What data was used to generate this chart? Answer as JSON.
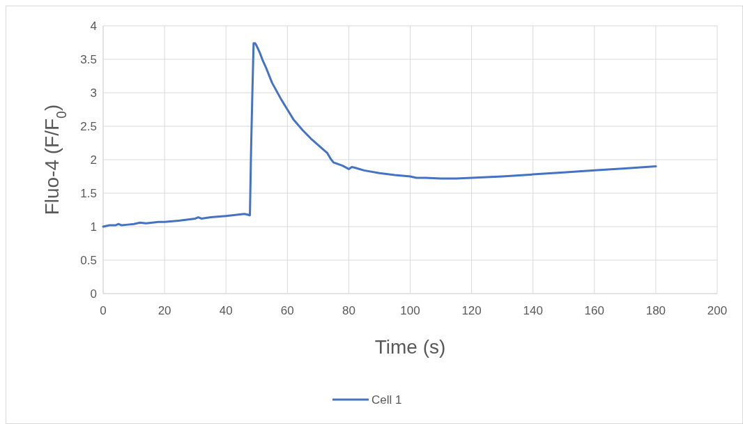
{
  "chart_data": {
    "type": "line",
    "xlabel": "Time (s)",
    "ylabel": "Fluo-4 (F/F$_{0}$)",
    "xlim": [
      0,
      200
    ],
    "xticks": [
      0,
      20,
      40,
      60,
      80,
      100,
      120,
      140,
      160,
      180,
      200
    ],
    "ylim": [
      0,
      4
    ],
    "yticks": [
      0,
      0.5,
      1,
      1.5,
      2,
      2.5,
      3,
      3.5,
      4
    ],
    "grid": true,
    "legend": "bottom",
    "marker": "none",
    "line_style": "solid",
    "series": [
      {
        "name": "Cell 1",
        "color": "#4472c4",
        "x": [
          0,
          2,
          4,
          5,
          6,
          8,
          10,
          12,
          14,
          16,
          18,
          20,
          25,
          30,
          31,
          32,
          35,
          40,
          44,
          46,
          47,
          47.8,
          48.2,
          48.6,
          49,
          49.5,
          50,
          51,
          52,
          53,
          55,
          58,
          60,
          62,
          65,
          68,
          70,
          72,
          73,
          74,
          75,
          78,
          80,
          81,
          82,
          85,
          90,
          95,
          100,
          102,
          105,
          110,
          115,
          120,
          125,
          130,
          140,
          150,
          160,
          170,
          180
        ],
        "values": [
          1.0,
          1.02,
          1.02,
          1.04,
          1.02,
          1.03,
          1.04,
          1.06,
          1.05,
          1.06,
          1.07,
          1.07,
          1.09,
          1.12,
          1.14,
          1.12,
          1.14,
          1.16,
          1.18,
          1.19,
          1.18,
          1.17,
          2.2,
          3.0,
          3.74,
          3.74,
          3.7,
          3.6,
          3.48,
          3.38,
          3.15,
          2.9,
          2.75,
          2.6,
          2.44,
          2.3,
          2.22,
          2.14,
          2.1,
          2.02,
          1.96,
          1.91,
          1.86,
          1.89,
          1.88,
          1.84,
          1.8,
          1.77,
          1.75,
          1.73,
          1.73,
          1.72,
          1.72,
          1.73,
          1.74,
          1.75,
          1.78,
          1.81,
          1.84,
          1.87,
          1.9
        ]
      }
    ]
  }
}
